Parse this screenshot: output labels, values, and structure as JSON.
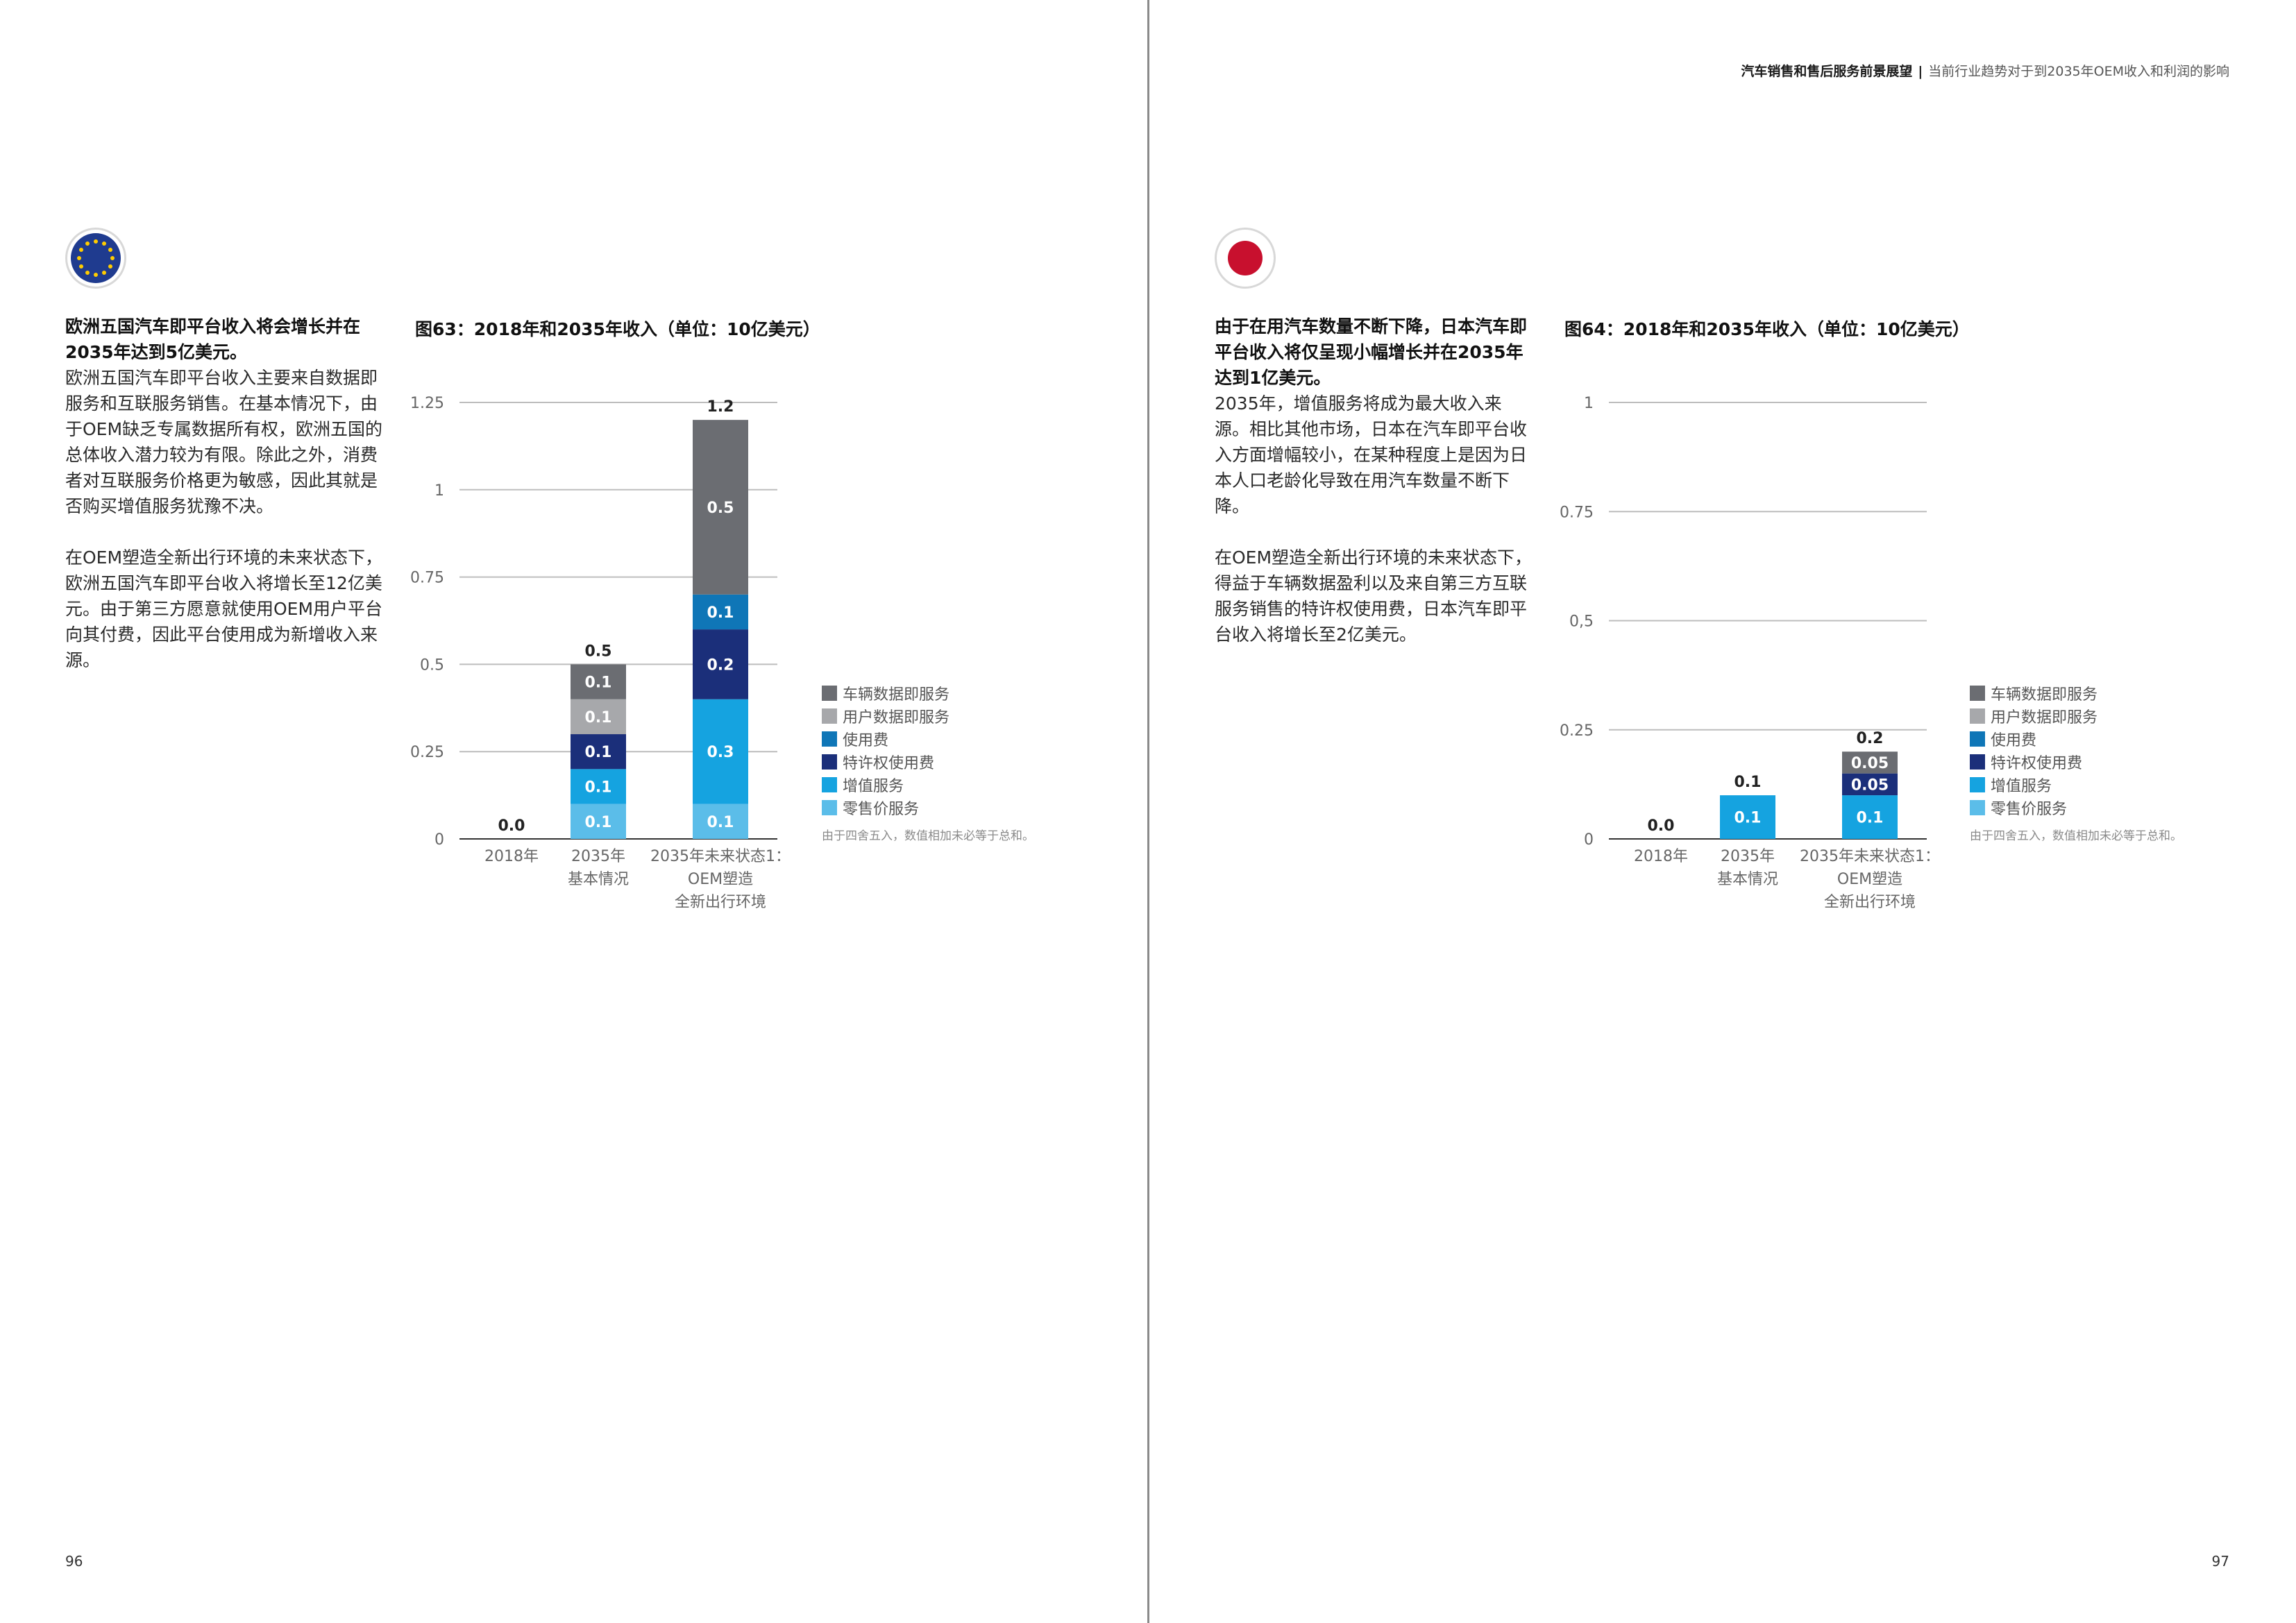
{
  "running_header": {
    "bold": "汽车销售和售后服务前景展望",
    "separator": "|",
    "subtitle": "当前行业趋势对于到2035年OEM收入和利润的影响"
  },
  "pages": {
    "left_number": "96",
    "right_number": "97"
  },
  "legend": {
    "items": [
      {
        "label": "车辆数据即服务",
        "color": "#6b6d72"
      },
      {
        "label": "用户数据即服务",
        "color": "#a7a8ab"
      },
      {
        "label": "使用费",
        "color": "#0f76b7"
      },
      {
        "label": "特许权使用费",
        "color": "#1b2f7a"
      },
      {
        "label": "增值服务",
        "color": "#15a3e0"
      },
      {
        "label": "零售价服务",
        "color": "#5bbde9"
      }
    ],
    "note": "由于四舍五入，数值相加未必等于总和。"
  },
  "colors": {
    "axis": "#333333",
    "grid": "#bdbdbd",
    "eu_flag": "#1f3b8f",
    "eu_star": "#ffcc00",
    "japan_flag": "#c8102e"
  },
  "left": {
    "flag_icon": "eu-flag-icon",
    "lead": "欧洲五国汽车即平台收入将会增长并在2035年达到5亿美元。",
    "paragraph1": "欧洲五国汽车即平台收入主要来自数据即服务和互联服务销售。在基本情况下，由于OEM缺乏专属数据所有权，欧洲五国的总体收入潜力较为有限。除此之外，消费者对互联服务价格更为敏感，因此其就是否购买增值服务犹豫不决。",
    "paragraph2": "在OEM塑造全新出行环境的未来状态下，欧洲五国汽车即平台收入将增长至12亿美元。由于第三方愿意就使用OEM用户平台向其付费，因此平台使用成为新增收入来源。",
    "figure_title": "图63：2018年和2035年收入（单位：10亿美元）"
  },
  "right": {
    "flag_icon": "japan-flag-icon",
    "lead": "由于在用汽车数量不断下降，日本汽车即平台收入将仅呈现小幅增长并在2035年达到1亿美元。",
    "paragraph1": "2035年，增值服务将成为最大收入来源。相比其他市场，日本在汽车即平台收入方面增幅较小，在某种程度上是因为日本人口老龄化导致在用汽车数量不断下降。",
    "paragraph2": "在OEM塑造全新出行环境的未来状态下，得益于车辆数据盈利以及来自第三方互联服务销售的特许权使用费，日本汽车即平台收入将增长至2亿美元。",
    "figure_title": "图64：2018年和2035年收入（单位：10亿美元）"
  },
  "chart_data": [
    {
      "type": "bar",
      "stacked": true,
      "title": "图63：2018年和2035年收入（单位：10亿美元）",
      "categories": [
        [
          "2018年"
        ],
        [
          "2035年",
          "基本情况"
        ],
        [
          "2035年未来状态1：",
          "OEM塑造",
          "全新出行环境"
        ]
      ],
      "ylim": [
        0,
        1.25
      ],
      "yticks": [
        0,
        0.25,
        0.5,
        0.75,
        1,
        1.25
      ],
      "ytick_labels": [
        "0",
        "0.25",
        "0.5",
        "0.75",
        "1",
        "1.25"
      ],
      "grid": true,
      "legend_position": "right",
      "series": [
        {
          "name": "零售价服务",
          "values": [
            0,
            0.1,
            0.1
          ],
          "labels": [
            "",
            "0.1",
            "0.1"
          ]
        },
        {
          "name": "增值服务",
          "values": [
            0,
            0.1,
            0.3
          ],
          "labels": [
            "",
            "0.1",
            "0.3"
          ]
        },
        {
          "name": "特许权使用费",
          "values": [
            0,
            0.1,
            0.2
          ],
          "labels": [
            "",
            "0.1",
            "0.2"
          ]
        },
        {
          "name": "使用费",
          "values": [
            0,
            0,
            0.1
          ],
          "labels": [
            "",
            "",
            "0.1"
          ]
        },
        {
          "name": "用户数据即服务",
          "values": [
            0,
            0.1,
            0
          ],
          "labels": [
            "",
            "0.1",
            ""
          ]
        },
        {
          "name": "车辆数据即服务",
          "values": [
            0,
            0.1,
            0.5
          ],
          "labels": [
            "",
            "0.1",
            "0.5"
          ]
        }
      ],
      "totals": [
        0.0,
        0.5,
        1.2
      ],
      "total_labels": [
        "0.0",
        "0.5",
        "1.2"
      ]
    },
    {
      "type": "bar",
      "stacked": true,
      "title": "图64：2018年和2035年收入（单位：10亿美元）",
      "categories": [
        [
          "2018年"
        ],
        [
          "2035年",
          "基本情况"
        ],
        [
          "2035年未来状态1：",
          "OEM塑造",
          "全新出行环境"
        ]
      ],
      "ylim": [
        0,
        1
      ],
      "yticks": [
        0,
        0.25,
        0.5,
        0.75,
        1
      ],
      "ytick_labels": [
        "0",
        "0.25",
        "0,5",
        "0.75",
        "1"
      ],
      "grid": true,
      "legend_position": "right",
      "series": [
        {
          "name": "零售价服务",
          "values": [
            0,
            0,
            0
          ],
          "labels": [
            "",
            "",
            ""
          ]
        },
        {
          "name": "增值服务",
          "values": [
            0,
            0.1,
            0.1
          ],
          "labels": [
            "",
            "0.1",
            "0.1"
          ]
        },
        {
          "name": "特许权使用费",
          "values": [
            0,
            0,
            0.05
          ],
          "labels": [
            "",
            "",
            "0.05"
          ]
        },
        {
          "name": "使用费",
          "values": [
            0,
            0,
            0
          ],
          "labels": [
            "",
            "",
            ""
          ]
        },
        {
          "name": "用户数据即服务",
          "values": [
            0,
            0,
            0
          ],
          "labels": [
            "",
            "",
            ""
          ]
        },
        {
          "name": "车辆数据即服务",
          "values": [
            0,
            0,
            0.05
          ],
          "labels": [
            "",
            "",
            "0.05"
          ]
        }
      ],
      "totals": [
        0.0,
        0.1,
        0.2
      ],
      "total_labels": [
        "0.0",
        "0.1",
        "0.2"
      ]
    }
  ]
}
